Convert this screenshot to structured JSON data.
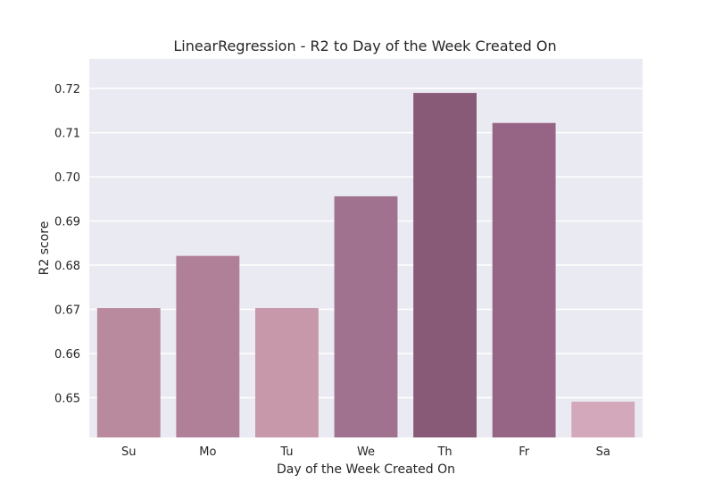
{
  "chart_data": {
    "type": "bar",
    "title": "LinearRegression - R2 to Day of the Week Created On",
    "xlabel": "Day of the Week Created On",
    "ylabel": "R2 score",
    "categories": [
      "Su",
      "Mo",
      "Tu",
      "We",
      "Th",
      "Fr",
      "Sa"
    ],
    "values": [
      0.6703,
      0.6821,
      0.6703,
      0.6956,
      0.719,
      0.7122,
      0.6491
    ],
    "ylim": [
      0.641,
      0.7267
    ],
    "yticks": [
      "0.65",
      "0.66",
      "0.67",
      "0.68",
      "0.69",
      "0.70",
      "0.71",
      "0.72"
    ],
    "grid": true,
    "colors": {
      "background": "#eaeaf2",
      "grid": "#ffffff",
      "bars": [
        "#b98a9e",
        "#b07f98",
        "#c797aa",
        "#a17290",
        "#885a77",
        "#966585",
        "#d4a8bb"
      ]
    }
  }
}
